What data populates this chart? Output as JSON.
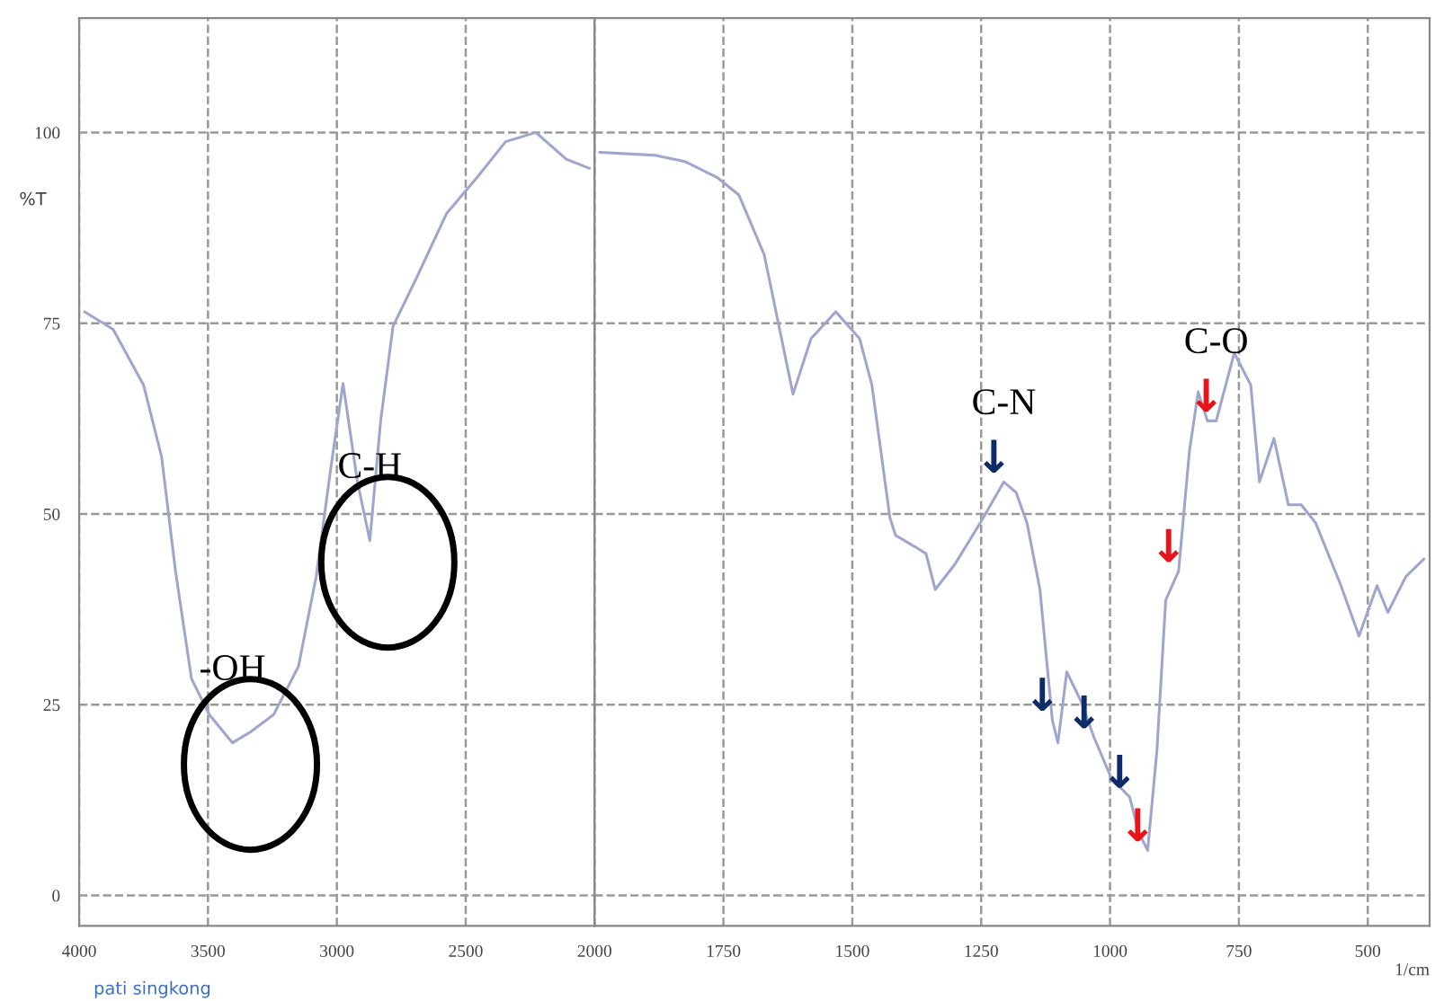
{
  "chart_data": [
    {
      "type": "line",
      "ylabel": "%T",
      "x": [
        3979,
        3868,
        3750,
        3680,
        3626,
        3564,
        3495,
        3405,
        3336,
        3245,
        3149,
        3080,
        3024,
        2976,
        2920,
        2872,
        2830,
        2782,
        2690,
        2574,
        2456,
        2345,
        2228,
        2110,
        2020
      ],
      "series": [
        {
          "color": "#9ea6cc",
          "values": [
            76.5,
            74.2,
            66.9,
            57.5,
            42.5,
            28.4,
            23.7,
            20,
            21.4,
            23.7,
            30,
            41.8,
            55.9,
            67.1,
            54.2,
            46.5,
            62.2,
            74.6,
            81,
            89.4,
            94.1,
            98.8,
            100,
            96.5,
            95.3
          ]
        }
      ],
      "xlim": [
        4000,
        2000
      ],
      "xticks": [
        4000,
        3500,
        3000,
        2500
      ],
      "ylim": [
        -4,
        115
      ],
      "yticks": [
        0,
        25,
        50,
        75,
        100
      ],
      "grid": true,
      "line_style": "solid",
      "marker": "none",
      "annotations": [
        {
          "text": "-OH",
          "x": 3405,
          "y": 20
        },
        {
          "text": "C-H",
          "x": 2872,
          "y": 46.5
        },
        "pati singkong"
      ]
    },
    {
      "type": "line",
      "xlabel": "1/cm",
      "x": [
        1990,
        1881,
        1825,
        1762,
        1720,
        1671,
        1615,
        1580,
        1532,
        1486,
        1462,
        1427,
        1416,
        1381,
        1357,
        1339,
        1301,
        1252,
        1206,
        1182,
        1161,
        1136,
        1112,
        1101,
        1084,
        1056,
        1031,
        997,
        962,
        944,
        927,
        909,
        892,
        867,
        846,
        829,
        811,
        794,
        759,
        727,
        710,
        682,
        654,
        629,
        601,
        552,
        517,
        482,
        461,
        426,
        391
      ],
      "series": [
        {
          "color": "#9ea6cc",
          "values": [
            97.4,
            97,
            96.2,
            94.1,
            91.8,
            84,
            65.7,
            73,
            76.5,
            73,
            66.9,
            49.5,
            47.2,
            45.8,
            44.8,
            40.1,
            43.4,
            48.8,
            54.2,
            52.8,
            48.8,
            40.1,
            23,
            20,
            29.3,
            25.4,
            20.7,
            15.3,
            12.9,
            8.2,
            5.9,
            19,
            38.7,
            42.5,
            58.2,
            66,
            62.2,
            62.2,
            71.1,
            66.9,
            54.2,
            59.9,
            51.2,
            51.2,
            48.8,
            40.6,
            34,
            40.6,
            37.1,
            41.8,
            44.1
          ]
        }
      ],
      "xlim": [
        2000,
        380
      ],
      "xticks": [
        2000,
        1750,
        1500,
        1250,
        1000,
        750,
        500
      ],
      "ylim": [
        -4,
        115
      ],
      "yticks": [
        0,
        25,
        50,
        75,
        100
      ],
      "tick_labels": "x",
      "grid": true,
      "line_style": "solid",
      "marker": "none",
      "annotations": [
        {
          "text": "C-N",
          "x": 1206,
          "y": 54.2
        },
        {
          "text": "↓",
          "x": 1206,
          "y": 54.2
        },
        {
          "text": "↓",
          "x": 1112,
          "y": 23
        },
        {
          "text": "↓",
          "x": 1031,
          "y": 20.7
        },
        {
          "text": "↓",
          "x": 962,
          "y": 12.9
        },
        {
          "text": "C-O",
          "x": 794,
          "y": 62.2
        },
        {
          "text": "↓",
          "x": 794,
          "y": 62.2
        },
        {
          "text": "↓",
          "x": 867,
          "y": 42.5
        },
        {
          "text": "↓",
          "x": 927,
          "y": 5.9
        }
      ]
    }
  ]
}
